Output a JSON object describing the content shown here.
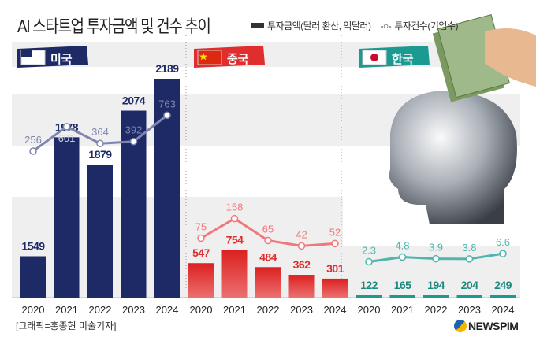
{
  "title": "AI 스타트업 투자금액 및 건수 추이",
  "legend": {
    "bars": "투자금액(달러 환산, 억달러)",
    "line": "투자건수(기업수)"
  },
  "credit": "[그래픽=홍종현 미술기자]",
  "logo": "NEWSPIM",
  "colors": {
    "us": "#1d2a66",
    "china": "#e02d2d",
    "korea": "#1a9a90",
    "us_line": "#7f86b0",
    "china_line": "#f0787c",
    "korea_line": "#4fb5ad"
  },
  "chart_data": [
    {
      "type": "bar+line",
      "panel": "미국",
      "categories": [
        "2020",
        "2021",
        "2022",
        "2023",
        "2024"
      ],
      "series": [
        {
          "name": "투자금액",
          "values": [
            1549,
            1978,
            1879,
            2074,
            2189
          ]
        },
        {
          "name": "투자건수",
          "values": [
            256,
            601,
            364,
            392,
            763
          ]
        }
      ]
    },
    {
      "type": "bar+line",
      "panel": "중국",
      "categories": [
        "2020",
        "2021",
        "2022",
        "2023",
        "2024"
      ],
      "series": [
        {
          "name": "투자금액",
          "values": [
            547,
            754,
            484,
            362,
            301
          ]
        },
        {
          "name": "투자건수",
          "values": [
            75,
            158,
            65,
            42,
            52
          ]
        }
      ]
    },
    {
      "type": "bar+line",
      "panel": "한국",
      "categories": [
        "2020",
        "2021",
        "2022",
        "2023",
        "2024"
      ],
      "series": [
        {
          "name": "투자금액",
          "values": [
            122,
            165,
            194,
            204,
            249
          ]
        },
        {
          "name": "투자건수",
          "values": [
            2.3,
            4.8,
            3.9,
            3.8,
            6.6
          ]
        }
      ]
    }
  ]
}
